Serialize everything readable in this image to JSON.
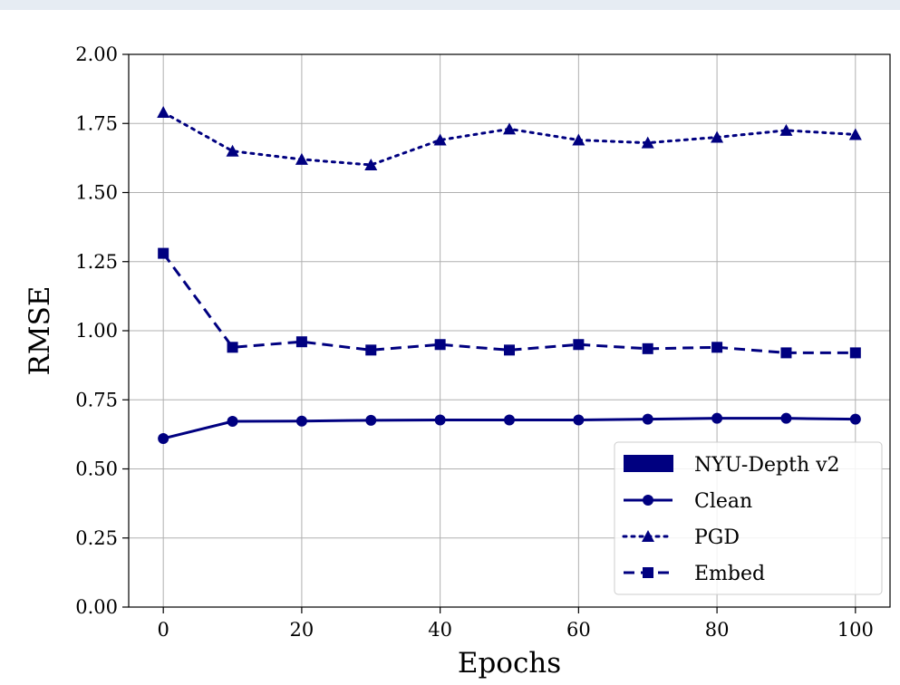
{
  "chart_data": {
    "type": "line",
    "title": "",
    "xlabel": "Epochs",
    "ylabel": "RMSE",
    "xlim": [
      -5,
      105
    ],
    "ylim": [
      0,
      2
    ],
    "xticks": [
      "0",
      "20",
      "40",
      "60",
      "80",
      "100"
    ],
    "yticks": [
      "0.00",
      "0.25",
      "0.50",
      "0.75",
      "1.00",
      "1.25",
      "1.50",
      "1.75",
      "2.00"
    ],
    "grid": true,
    "legend_position": "bottom-right",
    "legend_title": "NYU-Depth v2",
    "color": "#000080",
    "x": [
      0,
      10,
      20,
      30,
      40,
      50,
      60,
      70,
      80,
      90,
      100
    ],
    "series": [
      {
        "name": "Clean",
        "marker": "circle",
        "linestyle": "solid",
        "values": [
          0.61,
          0.672,
          0.673,
          0.676,
          0.677,
          0.677,
          0.677,
          0.68,
          0.683,
          0.683,
          0.68
        ]
      },
      {
        "name": "PGD",
        "marker": "triangle",
        "linestyle": "dotted",
        "values": [
          1.79,
          1.65,
          1.62,
          1.6,
          1.69,
          1.73,
          1.69,
          1.68,
          1.7,
          1.725,
          1.71
        ]
      },
      {
        "name": "Embed",
        "marker": "square",
        "linestyle": "dashed",
        "values": [
          1.28,
          0.94,
          0.96,
          0.93,
          0.95,
          0.93,
          0.95,
          0.935,
          0.94,
          0.92,
          0.92
        ]
      }
    ]
  }
}
